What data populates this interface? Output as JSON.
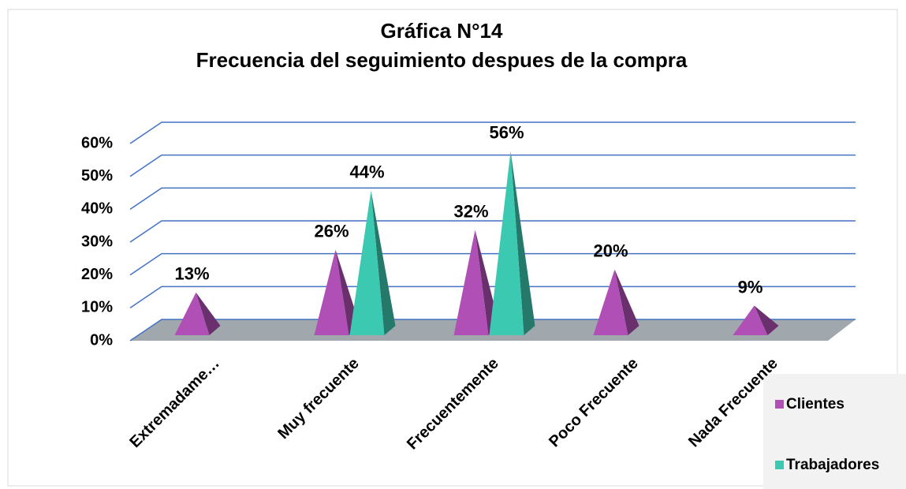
{
  "chart_data": {
    "type": "pyramid3d",
    "title": "Gráfica N°14",
    "subtitle": "Frecuencia del seguimiento despues de la compra",
    "categories": [
      "Extremadame…",
      "Muy frecuente",
      "Frecuentemente",
      "Poco Frecuente",
      "Nada Frecuente"
    ],
    "series": [
      {
        "name": "Clientes",
        "color": "#b04fb5",
        "values": [
          13,
          26,
          32,
          20,
          9
        ],
        "value_labels": [
          "13%",
          "26%",
          "32%",
          "20%",
          "9%"
        ]
      },
      {
        "name": "Trabajadores",
        "color": "#3cc9b2",
        "values": [
          null,
          44,
          56,
          null,
          null
        ],
        "value_labels": [
          null,
          "44%",
          "56%",
          null,
          null
        ]
      }
    ],
    "ylim": [
      0,
      60
    ],
    "yticks": [
      {
        "value": 0,
        "label": "0%"
      },
      {
        "value": 10,
        "label": "10%"
      },
      {
        "value": 20,
        "label": "20%"
      },
      {
        "value": 30,
        "label": "30%"
      },
      {
        "value": 40,
        "label": "40%"
      },
      {
        "value": 50,
        "label": "50%"
      },
      {
        "value": 60,
        "label": "60%"
      }
    ],
    "grid": true,
    "legend": "right"
  }
}
